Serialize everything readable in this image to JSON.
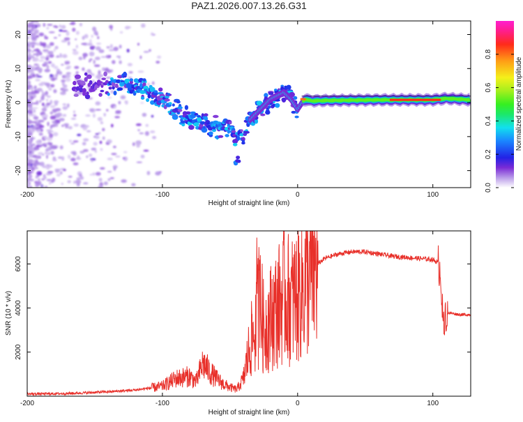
{
  "title": "PAZ1.2026.007.13.26.G31",
  "chart_data": [
    {
      "type": "heatmap",
      "id": "spectrogram",
      "xlabel": "Height of straight line (km)",
      "ylabel": "Frequency (Hz)",
      "xlim": [
        -200,
        128
      ],
      "ylim": [
        -25,
        24
      ],
      "xticks": [
        -200,
        -100,
        0,
        100
      ],
      "yticks": [
        -20,
        -10,
        0,
        10,
        20
      ],
      "ridge": {
        "x": [
          -200,
          -180,
          -160,
          -140,
          -130,
          -120,
          -110,
          -100,
          -90,
          -80,
          -70,
          -60,
          -50,
          -45,
          -40,
          -35,
          -30,
          -25,
          -20,
          -15,
          -10,
          -5,
          0,
          5,
          10,
          20,
          40,
          60,
          80,
          100,
          110,
          128
        ],
        "y": [
          4,
          5,
          5,
          5,
          6,
          5,
          3,
          1,
          -2,
          -5,
          -6,
          -7,
          -8,
          -10,
          -9,
          -5,
          -3,
          -1,
          1,
          2,
          3,
          1,
          -2,
          1,
          0.5,
          0.6,
          0.7,
          0.8,
          0.8,
          0.8,
          1.2,
          0.8
        ]
      },
      "colorbar": {
        "label": "Normalized spectral amplitude",
        "ticks": [
          "0.0",
          "0.2",
          "0.4",
          "0.6",
          "0.8"
        ],
        "tick_values": [
          0,
          0.2,
          0.4,
          0.6,
          0.8
        ],
        "range": [
          0,
          1
        ]
      }
    },
    {
      "type": "line",
      "id": "snr",
      "xlabel": "Height of straight line (km)",
      "ylabel": "SNR (10 * v/v)",
      "xlim": [
        -200,
        128
      ],
      "ylim": [
        0,
        7500
      ],
      "xticks": [
        -200,
        -100,
        0,
        100
      ],
      "yticks": [
        2000,
        4000,
        6000
      ],
      "color": "#e8302a",
      "envelope": {
        "x": [
          -200,
          -170,
          -140,
          -120,
          -100,
          -90,
          -80,
          -75,
          -70,
          -65,
          -60,
          -55,
          -50,
          -45,
          -40,
          -35,
          -30,
          -27,
          -25,
          -20,
          -15,
          -10,
          -5,
          0,
          5,
          10,
          15,
          20,
          30,
          40,
          50,
          60,
          70,
          80,
          90,
          100,
          104,
          106,
          107,
          108,
          110,
          115,
          120,
          128
        ],
        "y": [
          100,
          120,
          200,
          280,
          450,
          800,
          900,
          650,
          1500,
          1100,
          800,
          550,
          400,
          300,
          800,
          2400,
          3200,
          4000,
          3000,
          3600,
          4000,
          4600,
          4300,
          4600,
          5100,
          5700,
          6000,
          6250,
          6450,
          6550,
          6550,
          6450,
          6350,
          6300,
          6250,
          6200,
          6050,
          5500,
          3800,
          3600,
          3800,
          3750,
          3700,
          3700
        ]
      }
    }
  ]
}
